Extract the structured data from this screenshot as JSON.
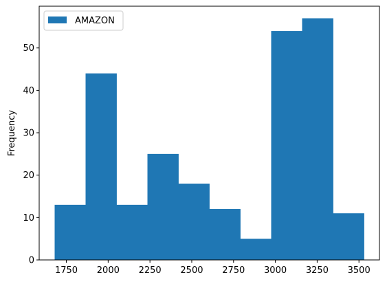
{
  "chart_data": {
    "type": "bar",
    "subtype": "histogram",
    "bin_edges": [
      1680,
      1865,
      2050,
      2235,
      2420,
      2605,
      2790,
      2975,
      3160,
      3345,
      3530
    ],
    "values": [
      13,
      44,
      13,
      25,
      18,
      12,
      5,
      54,
      57,
      11
    ],
    "series": [
      {
        "name": "AMAZON",
        "color": "#1f77b4"
      }
    ],
    "xlim": [
      1587.5,
      3622.5
    ],
    "ylim": [
      0,
      59.85
    ],
    "x_ticks": [
      1750,
      2000,
      2250,
      2500,
      2750,
      3000,
      3250,
      3500
    ],
    "y_ticks": [
      0,
      10,
      20,
      30,
      40,
      50
    ],
    "xlabel": "",
    "ylabel": "Frequency",
    "legend": {
      "position": "top-left",
      "entries": [
        "AMAZON"
      ]
    },
    "grid": false
  }
}
